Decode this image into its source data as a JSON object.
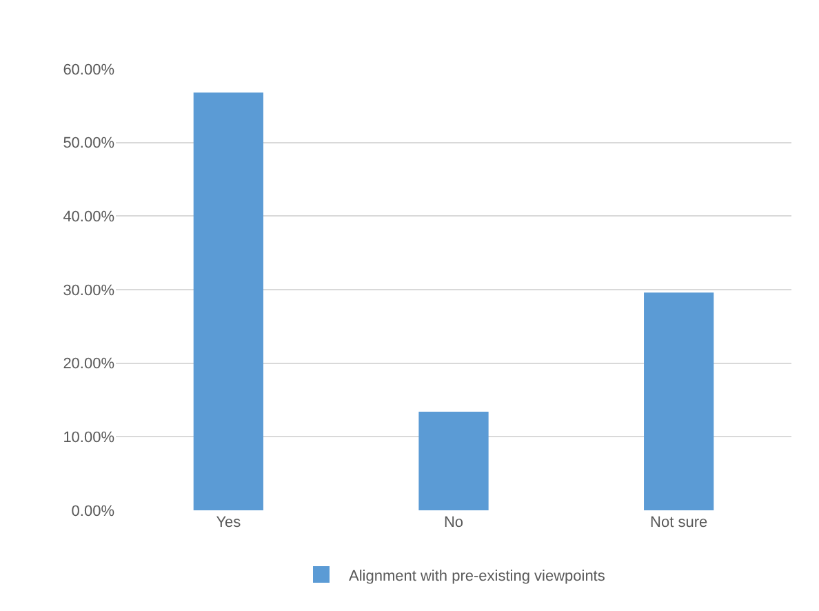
{
  "chart_data": {
    "type": "bar",
    "categories": [
      "Yes",
      "No",
      "Not sure"
    ],
    "series": [
      {
        "name": "Alignment with pre-existing viewpoints",
        "color": "#5b9bd5",
        "values": [
          56.8,
          13.4,
          29.6
        ]
      }
    ],
    "ylim": [
      0,
      60
    ],
    "yticks": [
      {
        "value": 0,
        "label": "0.00%"
      },
      {
        "value": 10,
        "label": "10.00%"
      },
      {
        "value": 20,
        "label": "20.00%"
      },
      {
        "value": 30,
        "label": "30.00%"
      },
      {
        "value": 40,
        "label": "40.00%"
      },
      {
        "value": 50,
        "label": "50.00%"
      },
      {
        "value": 60,
        "label": "60.00%"
      }
    ],
    "grid": "y",
    "legend": "bottom"
  }
}
